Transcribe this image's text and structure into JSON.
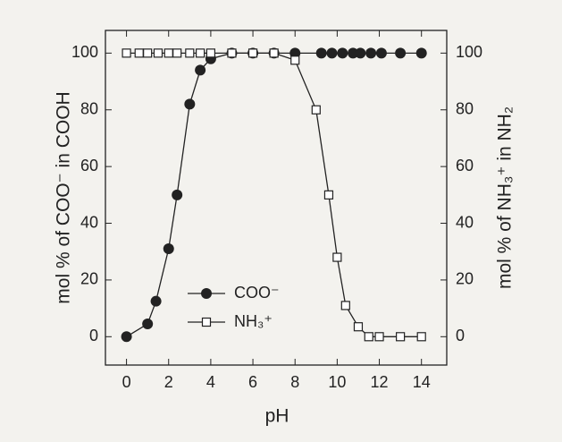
{
  "chart_data": {
    "type": "line",
    "xlabel": "pH",
    "ylabel": "mol % of COO⁻ in COOH",
    "y2label": "mol % of NH₃⁺ in NH₂",
    "xlim": [
      -1,
      15.2
    ],
    "xticks": [
      0,
      2,
      4,
      6,
      8,
      10,
      12,
      14
    ],
    "ylim": [
      -10,
      108
    ],
    "yticks": [
      0,
      20,
      40,
      60,
      80,
      100
    ],
    "y2lim": [
      -10,
      108
    ],
    "y2ticks": [
      0,
      20,
      40,
      60,
      80,
      100
    ],
    "legend": "lower left",
    "series": [
      {
        "name": "COO⁻",
        "color": "#222222",
        "marker": "circle",
        "x": [
          0,
          1,
          1.4,
          2,
          2.4,
          3,
          3.5,
          4,
          5,
          6,
          7,
          8,
          9.25,
          9.75,
          10.25,
          10.75,
          11.1,
          11.6,
          12.1,
          13,
          14
        ],
        "values": [
          0,
          4.5,
          12.5,
          31,
          50,
          82,
          94,
          98,
          100,
          100,
          100,
          100,
          100,
          100,
          100,
          100,
          100,
          100,
          100,
          100,
          100
        ]
      },
      {
        "name": "NH₃⁺",
        "color": "#222222",
        "marker": "square",
        "axis": "y2",
        "x": [
          0,
          0.6,
          1,
          1.5,
          2,
          2.4,
          3,
          3.5,
          4,
          5,
          6,
          7,
          8,
          9,
          9.6,
          10,
          10.4,
          11,
          11.5,
          12,
          13,
          14
        ],
        "values": [
          100,
          100,
          100,
          100,
          100,
          100,
          100,
          100,
          100,
          100,
          100,
          100,
          97.5,
          80,
          50,
          28,
          11,
          3.5,
          0,
          0,
          0,
          0
        ]
      }
    ]
  }
}
